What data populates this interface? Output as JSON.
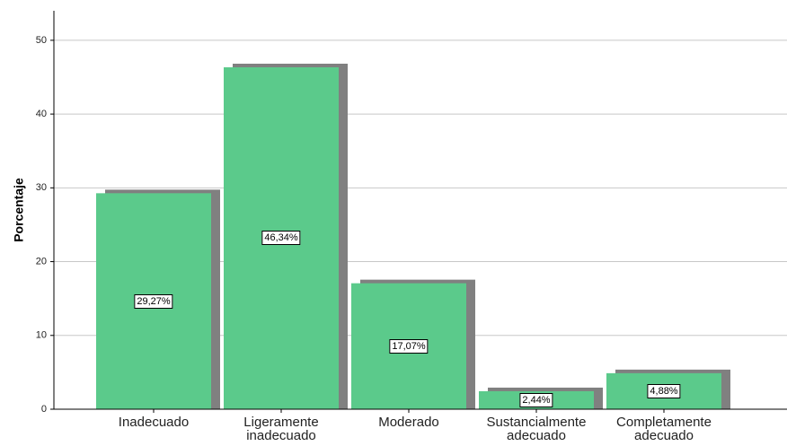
{
  "chart_data": {
    "type": "bar",
    "ylabel": "Porcentaje",
    "categories": [
      "Inadecuado",
      "Ligeramente inadecuado",
      "Moderado",
      "Sustancialmente adecuado",
      "Completamente adecuado"
    ],
    "values": [
      29.27,
      46.34,
      17.07,
      2.44,
      4.88
    ],
    "value_labels": [
      "29,27%",
      "46,34%",
      "17,07%",
      "2,44%",
      "4,88%"
    ],
    "color": "#5bca8b",
    "shadow_color": "#808080",
    "ylim": [
      0,
      54
    ],
    "yticks": [
      0,
      10,
      20,
      30,
      40,
      50
    ],
    "grid": true
  }
}
